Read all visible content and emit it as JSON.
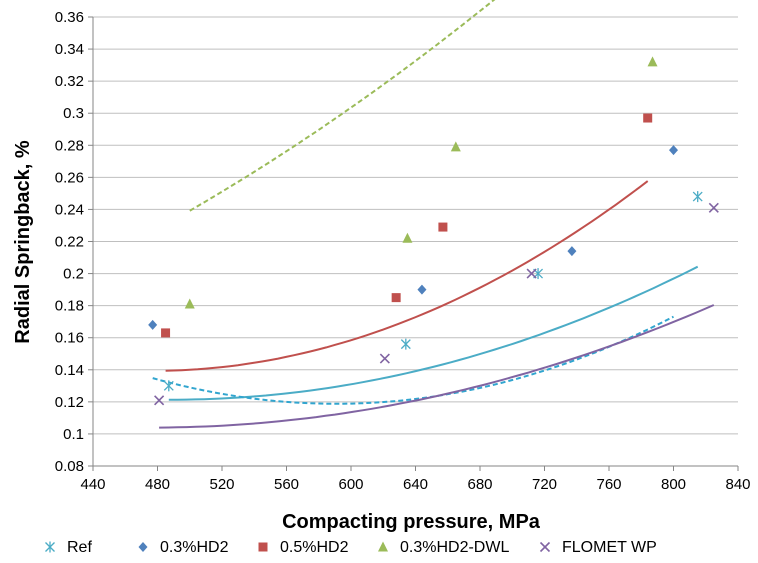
{
  "chart_data": {
    "type": "scatter",
    "title": "",
    "xlabel": "Compacting pressure, MPa",
    "ylabel": "Radial Springback, %",
    "xlim": [
      440,
      840
    ],
    "ylim": [
      0.08,
      0.36
    ],
    "xticks": [
      440,
      480,
      520,
      560,
      600,
      640,
      680,
      720,
      760,
      800,
      840
    ],
    "yticks": [
      0.08,
      0.1,
      0.12,
      0.14,
      0.16,
      0.18,
      0.2,
      0.22,
      0.24,
      0.26,
      0.28,
      0.3,
      0.32,
      0.34,
      0.36
    ],
    "xtick_labels": [
      "440",
      "480",
      "520",
      "560",
      "600",
      "640",
      "680",
      "720",
      "760",
      "800",
      "840"
    ],
    "ytick_labels": [
      "0.08",
      "0.1",
      "0.12",
      "0.14",
      "0.16",
      "0.18",
      "0.2",
      "0.22",
      "0.24",
      "0.26",
      "0.28",
      "0.3",
      "0.32",
      "0.34",
      "0.36"
    ],
    "grid": "horizontal",
    "legend_position": "bottom",
    "series": [
      {
        "name": "Ref",
        "marker": "asterisk",
        "color": "#4bacc6",
        "points": [
          [
            487,
            0.13
          ],
          [
            634,
            0.156
          ],
          [
            716,
            0.2
          ],
          [
            815,
            0.248
          ]
        ],
        "trend": {
          "kind": "poly2",
          "coef": [
            0.3082,
            -0.000764,
            7.81e-07
          ],
          "x_range": [
            487,
            815
          ],
          "dash": "solid"
        }
      },
      {
        "name": "0.3%HD2",
        "marker": "diamond",
        "color": "#4f81bd",
        "points": [
          [
            477,
            0.168
          ],
          [
            644,
            0.19
          ],
          [
            737,
            0.214
          ],
          [
            800,
            0.277
          ]
        ],
        "trend": {
          "kind": "poly2",
          "coef": [
            0.5515,
            -0.001465,
            1.24e-06
          ],
          "x_range": [
            477,
            800
          ],
          "dash": "dashed",
          "trend_color": "#31a5cf"
        }
      },
      {
        "name": "0.5%HD2",
        "marker": "square",
        "color": "#c0504d",
        "points": [
          [
            485,
            0.163
          ],
          [
            628,
            0.185
          ],
          [
            657,
            0.229
          ],
          [
            784,
            0.297
          ]
        ],
        "trend": {
          "kind": "poly2",
          "coef": [
            0.4228,
            -0.0011906,
            1.25e-06
          ],
          "x_range": [
            485,
            784
          ],
          "dash": "solid"
        }
      },
      {
        "name": "0.3%HD2-DWL",
        "marker": "triangle",
        "color": "#9bbb59",
        "points": [
          [
            500,
            0.181
          ],
          [
            635,
            0.222
          ],
          [
            665,
            0.279
          ],
          [
            787,
            0.332
          ]
        ],
        "trend": {
          "kind": "poly2",
          "coef": [
            0.1014,
            -3.04e-05,
            6.12e-07
          ],
          "x_range": [
            500,
            787
          ],
          "dash": "dashed"
        }
      },
      {
        "name": "FLOMET WP",
        "marker": "x",
        "color": "#8064a2",
        "points": [
          [
            481,
            0.121
          ],
          [
            621,
            0.147
          ],
          [
            712,
            0.2
          ],
          [
            825,
            0.241
          ]
        ],
        "trend": {
          "kind": "poly2",
          "coef": [
            0.2463,
            -0.000598,
            6.28e-07
          ],
          "x_range": [
            481,
            825
          ],
          "dash": "solid"
        }
      }
    ]
  }
}
